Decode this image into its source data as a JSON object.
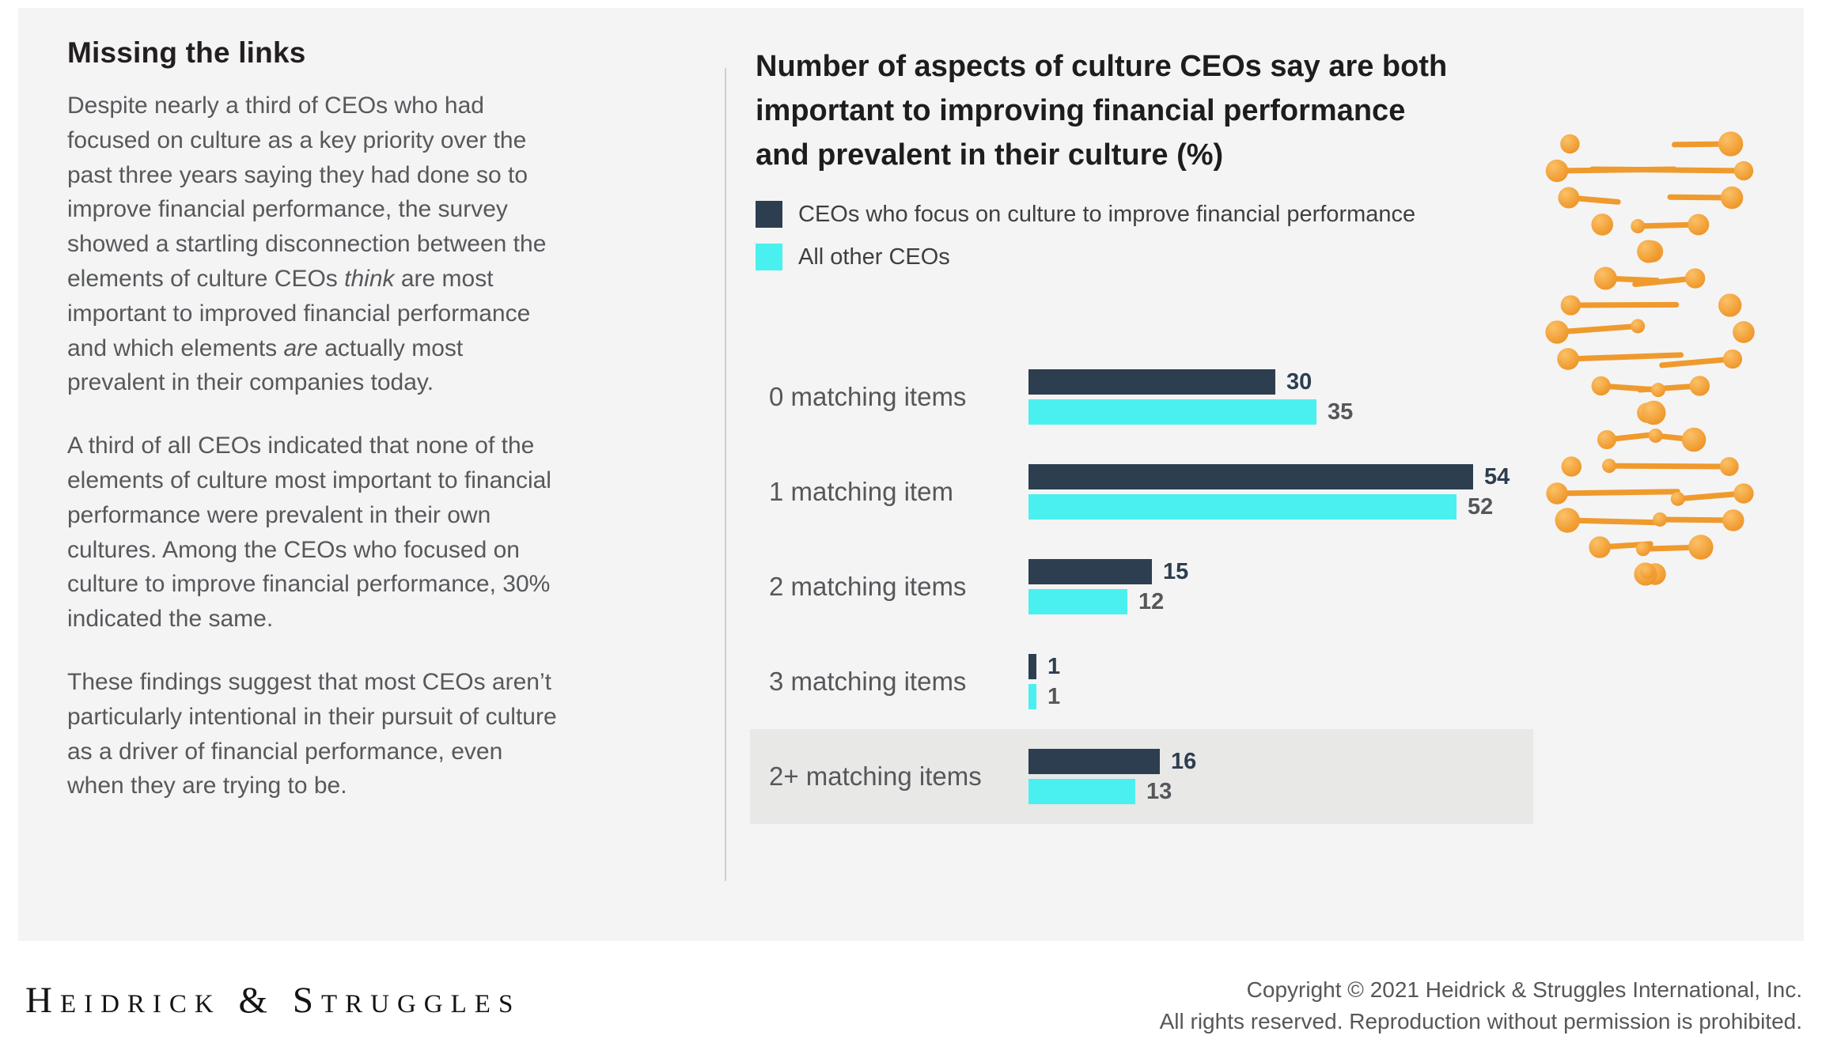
{
  "left": {
    "heading": "Missing the links",
    "p1": {
      "a": "Despite nearly a third of CEOs who had focused on culture as a key priority over the past three years saying they had done so to improve financial performance, the survey showed a startling disconnection between the elements of culture CEOs ",
      "think": "think",
      "b": " are most important to improved financial performance and which elements ",
      "are": "are",
      "c": " actually most prevalent in their companies today."
    },
    "p2": "A third of all CEOs indicated that none of the elements of culture most important to financial performance were prevalent in their own cultures. Among the CEOs who focused on culture to improve financial performance, 30% indicated the same.",
    "p3": "These findings suggest that most CEOs aren’t particularly intentional in their pursuit of culture as a driver of financial performance, even when they are trying to be."
  },
  "chart": {
    "title_lines": [
      "Number of aspects of culture CEOs say are both",
      "important to improving financial performance",
      "and prevalent in their culture (%)"
    ]
  },
  "chart_data": {
    "type": "bar",
    "title": "Number of aspects of culture CEOs say are both important to improving financial performance and prevalent in their culture (%)",
    "orientation": "horizontal",
    "categories": [
      "0 matching items",
      "1 matching item",
      "2 matching items",
      "3 matching items",
      "2+ matching items"
    ],
    "series": [
      {
        "name": "CEOs who focus on culture to improve financial performance",
        "color": "#2d3e50",
        "values": [
          30,
          54,
          15,
          1,
          16
        ]
      },
      {
        "name": "All other CEOs",
        "color": "#4af0ef",
        "values": [
          35,
          52,
          12,
          1,
          13
        ]
      }
    ],
    "value_unit": "percent",
    "xlim": [
      0,
      60
    ],
    "grid": false,
    "legend_position": "top-left",
    "highlight_category": "2+ matching items",
    "highlight_color": "#e8e8e7"
  },
  "footer": {
    "logo_text": "Heidrick & Struggles",
    "copyright_line1": "Copyright © 2021 Heidrick & Struggles International, Inc.",
    "copyright_line2": "All rights reserved. Reproduction without permission is prohibited."
  }
}
